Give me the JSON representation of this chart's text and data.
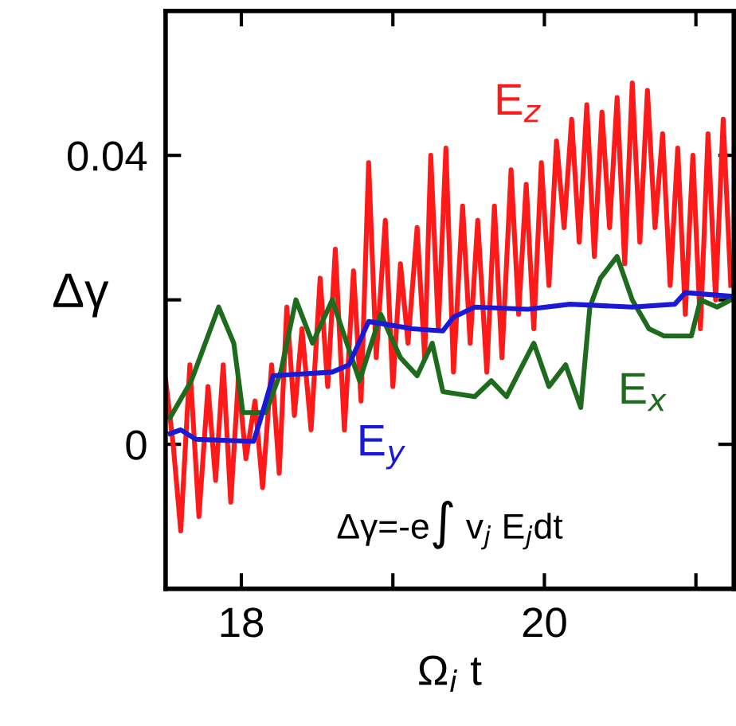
{
  "chart_data": {
    "type": "line",
    "xlabel": "Ω$_{i}$ t",
    "ylabel": "Δγ",
    "annotations": [
      "Δγ=-e∫ v$_{j}$ E$_{j}$dt"
    ],
    "xlim": [
      17.5,
      21.25
    ],
    "xticks": [
      18,
      {
        "value": 19,
        "label": null
      },
      20,
      {
        "value": 21,
        "label": null
      }
    ],
    "ylim": [
      -0.02,
      0.06
    ],
    "yticks": [
      0,
      {
        "value": 0.02,
        "label": null
      },
      0.04
    ],
    "grid": false,
    "legend": false,
    "marker": "none",
    "line_style": "solid",
    "series": [
      {
        "name": "E$_{z}$",
        "color": "#ff1a1a",
        "x": [
          17.5,
          17.55,
          17.6,
          17.66,
          17.72,
          17.78,
          17.83,
          17.88,
          17.93,
          17.98,
          18.03,
          18.09,
          18.14,
          18.2,
          18.25,
          18.3,
          18.35,
          18.4,
          18.46,
          18.52,
          18.57,
          18.62,
          18.68,
          18.74,
          18.79,
          18.84,
          18.89,
          18.95,
          19.0,
          19.05,
          19.1,
          19.16,
          19.21,
          19.25,
          19.3,
          19.35,
          19.4,
          19.46,
          19.51,
          19.56,
          19.62,
          19.67,
          19.72,
          19.78,
          19.83,
          19.88,
          19.93,
          19.98,
          20.03,
          20.08,
          20.13,
          20.18,
          20.23,
          20.28,
          20.33,
          20.38,
          20.43,
          20.48,
          20.53,
          20.58,
          20.63,
          20.68,
          20.73,
          20.78,
          20.83,
          20.88,
          20.93,
          20.98,
          21.03,
          21.08,
          21.13,
          21.18,
          21.23
        ],
        "values": [
          0.009,
          0.0,
          -0.012,
          0.011,
          -0.01,
          0.008,
          -0.005,
          0.011,
          -0.008,
          0.009,
          -0.002,
          0.006,
          -0.006,
          0.011,
          -0.004,
          0.019,
          0.004,
          0.016,
          0.002,
          0.023,
          0.008,
          0.027,
          0.002,
          0.024,
          0.006,
          0.039,
          0.012,
          0.031,
          0.008,
          0.025,
          0.014,
          0.03,
          0.012,
          0.04,
          0.016,
          0.041,
          0.01,
          0.033,
          0.014,
          0.031,
          0.01,
          0.033,
          0.012,
          0.038,
          0.018,
          0.036,
          0.016,
          0.039,
          0.022,
          0.042,
          0.03,
          0.045,
          0.028,
          0.047,
          0.026,
          0.046,
          0.03,
          0.048,
          0.025,
          0.05,
          0.028,
          0.049,
          0.03,
          0.043,
          0.022,
          0.041,
          0.018,
          0.04,
          0.016,
          0.043,
          0.02,
          0.045,
          0.022
        ]
      },
      {
        "name": "E$_{x}$",
        "color": "#1e6b1e",
        "x": [
          17.53,
          17.67,
          17.85,
          17.95,
          18.01,
          18.16,
          18.26,
          18.36,
          18.47,
          18.6,
          18.78,
          18.92,
          19.05,
          19.16,
          19.26,
          19.33,
          19.54,
          19.65,
          19.75,
          19.93,
          20.03,
          20.14,
          20.24,
          20.3,
          20.37,
          20.48,
          20.58,
          20.69,
          20.79,
          20.97,
          21.03,
          21.14,
          21.23
        ],
        "values": [
          0.0037,
          0.0088,
          0.019,
          0.014,
          0.0044,
          0.0044,
          0.01,
          0.02,
          0.014,
          0.02,
          0.0088,
          0.018,
          0.012,
          0.0095,
          0.014,
          0.0073,
          0.0066,
          0.0088,
          0.0066,
          0.014,
          0.008,
          0.011,
          0.0051,
          0.019,
          0.023,
          0.026,
          0.02,
          0.016,
          0.015,
          0.015,
          0.02,
          0.019,
          0.02
        ]
      },
      {
        "name": "E$_{y}$",
        "color": "#1a1ad6",
        "x": [
          17.53,
          17.6,
          17.7,
          18.08,
          18.12,
          18.21,
          18.6,
          18.71,
          18.84,
          19.13,
          19.33,
          19.4,
          19.54,
          19.89,
          20.17,
          20.58,
          20.86,
          20.93,
          21.23
        ],
        "values": [
          0.0015,
          0.002,
          0.0007,
          0.0004,
          0.003,
          0.0095,
          0.01,
          0.011,
          0.017,
          0.016,
          0.0157,
          0.0176,
          0.019,
          0.0187,
          0.0194,
          0.019,
          0.0194,
          0.021,
          0.0205
        ]
      }
    ]
  }
}
